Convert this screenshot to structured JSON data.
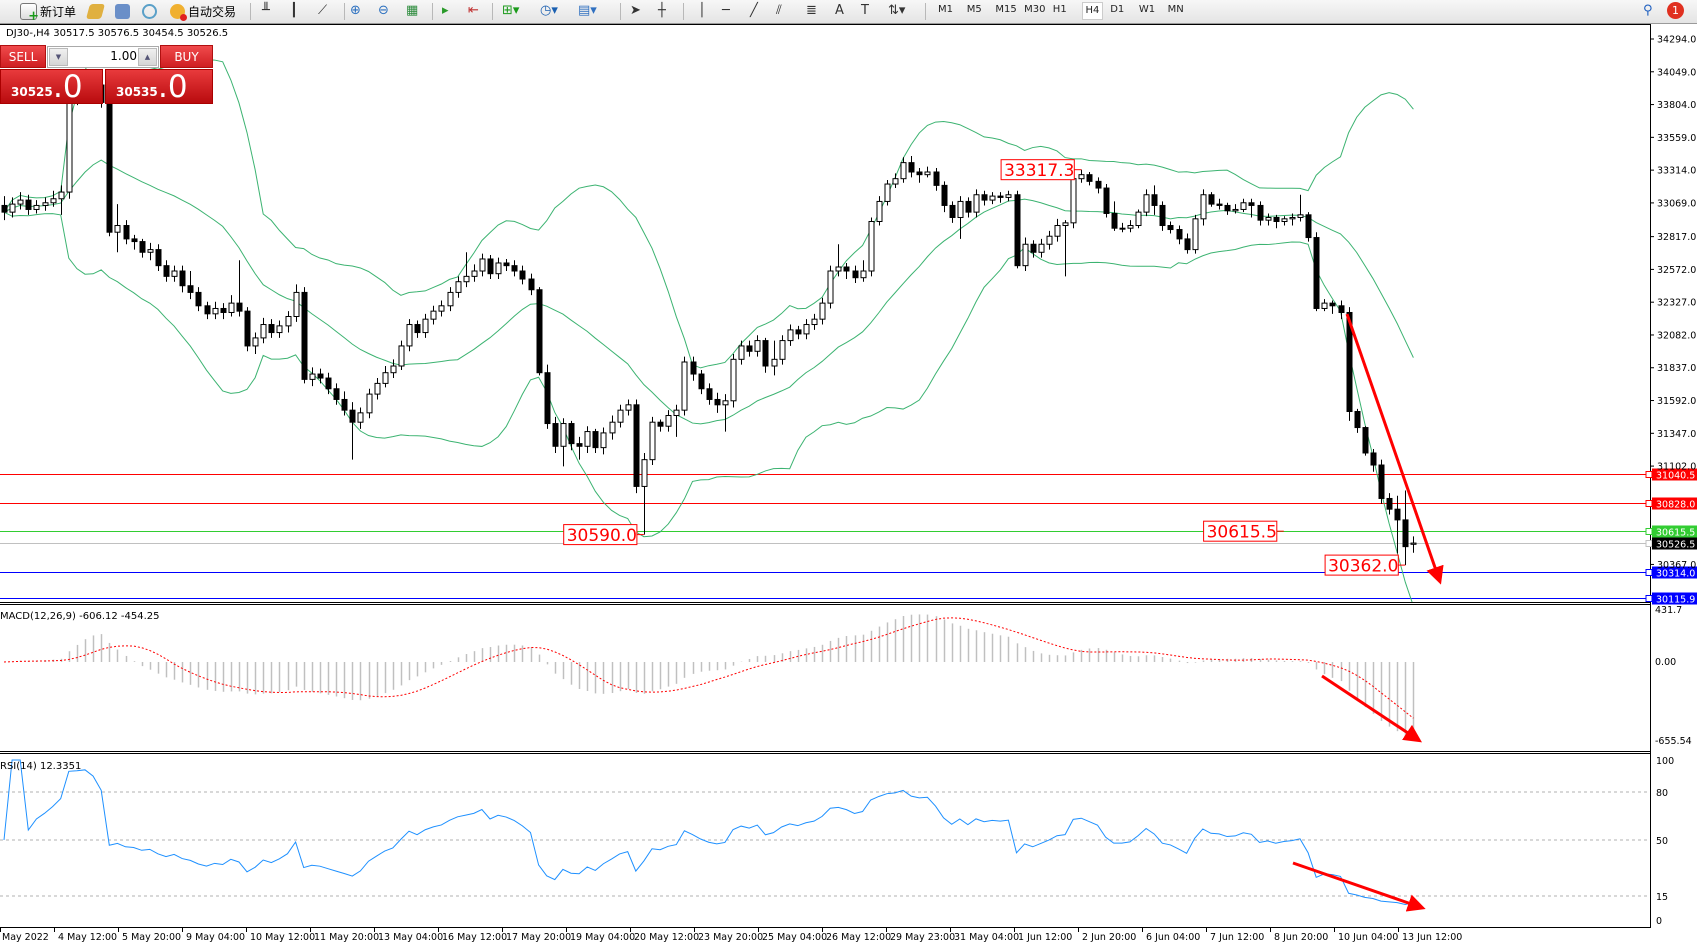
{
  "toolbar": {
    "new_order": "新订单",
    "auto_trade": "自动交易",
    "timeframes": [
      "M1",
      "M5",
      "M15",
      "M30",
      "H1",
      "H4",
      "D1",
      "W1",
      "MN"
    ],
    "active_timeframe": "H4",
    "notification_count": "1",
    "icons": [
      "new-order-icon",
      "history-icon",
      "terminal-icon",
      "signals-icon",
      "autotrade-icon",
      "bar-chart-icon",
      "candlestick-icon",
      "line-chart-icon",
      "zoom-in-icon",
      "zoom-out-icon",
      "tile-windows-icon",
      "autoscroll-icon",
      "chart-shift-icon",
      "new-chart-icon",
      "periods-icon",
      "templates-icon",
      "cursor-icon",
      "crosshair-icon",
      "vertical-line-icon",
      "horizontal-line-icon",
      "trendline-icon",
      "equidistant-channel-icon",
      "fibonacci-icon",
      "text-icon",
      "text-label-icon",
      "arrows-icon",
      "search-icon",
      "chat-icon"
    ]
  },
  "info_line": "DJ30-,H4  30517.5 30576.5 30454.5 30526.5",
  "one_click": {
    "sell_label": "SELL",
    "buy_label": "BUY",
    "lot": "1.00",
    "sell_price_main": "30525",
    "sell_price_frac": ".0",
    "buy_price_main": "30535",
    "buy_price_frac": ".0",
    "color": "#d42a2d"
  },
  "chart_data": {
    "type": "candlestick",
    "symbol": "DJ30-",
    "timeframe": "H4",
    "ylim": [
      30115.9,
      34294.0
    ],
    "price_ticks": [
      "34294.0",
      "34049.0",
      "33804.0",
      "33559.0",
      "33314.0",
      "33069.0",
      "32817.0",
      "32572.0",
      "32327.0",
      "32082.0",
      "31837.0",
      "31592.0",
      "31347.0",
      "31102.0",
      "30367.0"
    ],
    "date_labels": [
      "May 2022",
      "4 May 12:00",
      "5 May 20:00",
      "9 May 04:00",
      "10 May 12:00",
      "11 May 20:00",
      "13 May 04:00",
      "16 May 12:00",
      "17 May 20:00",
      "19 May 04:00",
      "20 May 12:00",
      "23 May 20:00",
      "25 May 04:00",
      "26 May 12:00",
      "29 May 23:00",
      "31 May 04:00",
      "1 Jun 12:00",
      "2 Jun 20:00",
      "6 Jun 04:00",
      "7 Jun 12:00",
      "8 Jun 20:00",
      "10 Jun 04:00",
      "13 Jun 12:00"
    ],
    "ohlc": [
      [
        33050,
        33120,
        32940,
        33000
      ],
      [
        33000,
        33110,
        32960,
        33060
      ],
      [
        33060,
        33150,
        33020,
        33090
      ],
      [
        33090,
        33130,
        32980,
        33020
      ],
      [
        33020,
        33090,
        32990,
        33050
      ],
      [
        33050,
        33110,
        33010,
        33070
      ],
      [
        33070,
        33160,
        33040,
        33100
      ],
      [
        33100,
        33200,
        32980,
        33150
      ],
      [
        33150,
        33900,
        33100,
        33850
      ],
      [
        33850,
        33960,
        33800,
        33900
      ],
      [
        33900,
        34060,
        33860,
        34000
      ],
      [
        34000,
        34050,
        33900,
        33950
      ],
      [
        33950,
        33990,
        33780,
        33820
      ],
      [
        33820,
        33850,
        32820,
        32850
      ],
      [
        32850,
        33060,
        32700,
        32900
      ],
      [
        32900,
        32940,
        32760,
        32800
      ],
      [
        32800,
        32830,
        32720,
        32780
      ],
      [
        32780,
        32800,
        32660,
        32700
      ],
      [
        32700,
        32770,
        32640,
        32720
      ],
      [
        32720,
        32760,
        32560,
        32600
      ],
      [
        32600,
        32640,
        32480,
        32520
      ],
      [
        32520,
        32600,
        32480,
        32560
      ],
      [
        32560,
        32600,
        32400,
        32450
      ],
      [
        32450,
        32560,
        32350,
        32400
      ],
      [
        32400,
        32440,
        32260,
        32300
      ],
      [
        32300,
        32330,
        32200,
        32240
      ],
      [
        32240,
        32330,
        32200,
        32280
      ],
      [
        32280,
        32320,
        32200,
        32250
      ],
      [
        32250,
        32380,
        32220,
        32320
      ],
      [
        32320,
        32640,
        32220,
        32260
      ],
      [
        32260,
        32290,
        31960,
        32000
      ],
      [
        32000,
        32100,
        31940,
        32060
      ],
      [
        32060,
        32210,
        32020,
        32160
      ],
      [
        32160,
        32200,
        32060,
        32100
      ],
      [
        32100,
        32190,
        32060,
        32150
      ],
      [
        32150,
        32260,
        32100,
        32220
      ],
      [
        32220,
        32460,
        32180,
        32400
      ],
      [
        32400,
        32440,
        31720,
        31750
      ],
      [
        31750,
        31840,
        31700,
        31790
      ],
      [
        31790,
        31830,
        31720,
        31760
      ],
      [
        31760,
        31800,
        31640,
        31680
      ],
      [
        31680,
        31720,
        31560,
        31600
      ],
      [
        31600,
        31660,
        31480,
        31520
      ],
      [
        31520,
        31580,
        31150,
        31430
      ],
      [
        31430,
        31540,
        31380,
        31500
      ],
      [
        31500,
        31680,
        31460,
        31640
      ],
      [
        31640,
        31760,
        31600,
        31720
      ],
      [
        31720,
        31850,
        31690,
        31800
      ],
      [
        31800,
        31900,
        31760,
        31850
      ],
      [
        31850,
        32040,
        31820,
        32000
      ],
      [
        32000,
        32200,
        31960,
        32160
      ],
      [
        32160,
        32190,
        32060,
        32100
      ],
      [
        32100,
        32240,
        32060,
        32200
      ],
      [
        32200,
        32300,
        32160,
        32260
      ],
      [
        32260,
        32340,
        32220,
        32300
      ],
      [
        32300,
        32440,
        32260,
        32400
      ],
      [
        32400,
        32520,
        32360,
        32480
      ],
      [
        32480,
        32700,
        32440,
        32520
      ],
      [
        32520,
        32610,
        32480,
        32560
      ],
      [
        32560,
        32690,
        32520,
        32650
      ],
      [
        32650,
        32680,
        32500,
        32540
      ],
      [
        32540,
        32660,
        32500,
        32620
      ],
      [
        32620,
        32650,
        32560,
        32600
      ],
      [
        32600,
        32640,
        32520,
        32560
      ],
      [
        32560,
        32600,
        32460,
        32500
      ],
      [
        32500,
        32540,
        32380,
        32420
      ],
      [
        32420,
        32440,
        31780,
        31800
      ],
      [
        31800,
        31860,
        31380,
        31420
      ],
      [
        31420,
        31470,
        31200,
        31250
      ],
      [
        31250,
        31460,
        31100,
        31420
      ],
      [
        31420,
        31440,
        31220,
        31270
      ],
      [
        31270,
        31320,
        31150,
        31250
      ],
      [
        31250,
        31400,
        31200,
        31360
      ],
      [
        31360,
        31380,
        31200,
        31240
      ],
      [
        31240,
        31390,
        31190,
        31350
      ],
      [
        31350,
        31480,
        31300,
        31430
      ],
      [
        31430,
        31560,
        31390,
        31520
      ],
      [
        31520,
        31600,
        31480,
        31560
      ],
      [
        31560,
        31600,
        30900,
        30950
      ],
      [
        30950,
        31200,
        30590,
        31150
      ],
      [
        31150,
        31470,
        31110,
        31430
      ],
      [
        31430,
        31450,
        31360,
        31400
      ],
      [
        31400,
        31520,
        31360,
        31480
      ],
      [
        31480,
        31560,
        31320,
        31520
      ],
      [
        31520,
        31920,
        31480,
        31880
      ],
      [
        31880,
        31920,
        31740,
        31790
      ],
      [
        31790,
        31820,
        31640,
        31680
      ],
      [
        31680,
        31720,
        31560,
        31600
      ],
      [
        31600,
        31650,
        31500,
        31560
      ],
      [
        31560,
        31640,
        31360,
        31590
      ],
      [
        31590,
        31940,
        31540,
        31900
      ],
      [
        31900,
        32040,
        31860,
        32000
      ],
      [
        32000,
        32040,
        31920,
        31960
      ],
      [
        31960,
        32080,
        31920,
        32040
      ],
      [
        32040,
        32060,
        31800,
        31850
      ],
      [
        31850,
        32040,
        31780,
        31900
      ],
      [
        31900,
        32080,
        31860,
        32040
      ],
      [
        32040,
        32160,
        32000,
        32120
      ],
      [
        32120,
        32150,
        32050,
        32090
      ],
      [
        32090,
        32200,
        32050,
        32160
      ],
      [
        32160,
        32240,
        32120,
        32200
      ],
      [
        32200,
        32360,
        32160,
        32320
      ],
      [
        32320,
        32600,
        32280,
        32560
      ],
      [
        32560,
        32760,
        32520,
        32590
      ],
      [
        32590,
        32620,
        32500,
        32560
      ],
      [
        32560,
        32600,
        32470,
        32510
      ],
      [
        32510,
        32640,
        32480,
        32560
      ],
      [
        32560,
        32960,
        32520,
        32930
      ],
      [
        32930,
        33120,
        32900,
        33080
      ],
      [
        33080,
        33240,
        33050,
        33210
      ],
      [
        33210,
        33290,
        33180,
        33250
      ],
      [
        33250,
        33410,
        33220,
        33370
      ],
      [
        33370,
        33420,
        33260,
        33300
      ],
      [
        33300,
        33330,
        33220,
        33280
      ],
      [
        33280,
        33340,
        33260,
        33300
      ],
      [
        33300,
        33330,
        33160,
        33200
      ],
      [
        33200,
        33230,
        33000,
        33050
      ],
      [
        33050,
        33080,
        32920,
        32960
      ],
      [
        32960,
        33120,
        32800,
        33080
      ],
      [
        33080,
        33110,
        32960,
        33000
      ],
      [
        33000,
        33170,
        32960,
        33130
      ],
      [
        33130,
        33160,
        33050,
        33090
      ],
      [
        33090,
        33150,
        33060,
        33120
      ],
      [
        33120,
        33150,
        33070,
        33110
      ],
      [
        33110,
        33160,
        33080,
        33130
      ],
      [
        33130,
        33160,
        32580,
        32600
      ],
      [
        32600,
        32810,
        32560,
        32760
      ],
      [
        32760,
        32790,
        32660,
        32700
      ],
      [
        32700,
        32800,
        32660,
        32760
      ],
      [
        32760,
        32860,
        32720,
        32820
      ],
      [
        32820,
        32950,
        32780,
        32900
      ],
      [
        32900,
        32940,
        32520,
        32920
      ],
      [
        32920,
        33290,
        32880,
        33250
      ],
      [
        33250,
        33317.3,
        33220,
        33280
      ],
      [
        33280,
        33300,
        33200,
        33230
      ],
      [
        33230,
        33260,
        33140,
        33180
      ],
      [
        33180,
        33210,
        32960,
        32990
      ],
      [
        32990,
        33080,
        32860,
        32880
      ],
      [
        32880,
        32920,
        32850,
        32880
      ],
      [
        32880,
        32940,
        32850,
        32900
      ],
      [
        32900,
        33020,
        32880,
        33000
      ],
      [
        33000,
        33170,
        32970,
        33130
      ],
      [
        33130,
        33200,
        32980,
        33050
      ],
      [
        33050,
        33080,
        32860,
        32900
      ],
      [
        32900,
        32930,
        32840,
        32870
      ],
      [
        32870,
        32900,
        32760,
        32800
      ],
      [
        32800,
        32840,
        32690,
        32720
      ],
      [
        32720,
        32980,
        32690,
        32950
      ],
      [
        32950,
        33170,
        32900,
        33130
      ],
      [
        33130,
        33150,
        33040,
        33060
      ],
      [
        33060,
        33100,
        33020,
        33050
      ],
      [
        33050,
        33070,
        32980,
        33010
      ],
      [
        33010,
        33060,
        32990,
        33020
      ],
      [
        33020,
        33100,
        33000,
        33070
      ],
      [
        33070,
        33100,
        32960,
        33050
      ],
      [
        33050,
        33080,
        32900,
        32940
      ],
      [
        32940,
        32990,
        32900,
        32960
      ],
      [
        32960,
        32980,
        32880,
        32930
      ],
      [
        32930,
        32970,
        32900,
        32950
      ],
      [
        32950,
        32990,
        32900,
        32960
      ],
      [
        32960,
        33130,
        32930,
        32980
      ],
      [
        32980,
        33000,
        32780,
        32810
      ],
      [
        32810,
        32850,
        32260,
        32280
      ],
      [
        32280,
        32350,
        32260,
        32320
      ],
      [
        32320,
        32340,
        32240,
        32300
      ],
      [
        32300,
        32340,
        32200,
        32250
      ],
      [
        32250,
        32290,
        31440,
        31510
      ],
      [
        31510,
        31530,
        31350,
        31390
      ],
      [
        31390,
        31400,
        31180,
        31200
      ],
      [
        31200,
        31230,
        31060,
        31110
      ],
      [
        31110,
        31150,
        30820,
        30860
      ],
      [
        30860,
        30900,
        30740,
        30780
      ],
      [
        30780,
        30880,
        30450,
        30700
      ],
      [
        30700,
        30920,
        30362,
        30500
      ],
      [
        30517.5,
        30576.5,
        30454.5,
        30526.5
      ]
    ],
    "bollinger": {
      "period": 20,
      "deviation": 2,
      "color": "#3cb371"
    },
    "levels": [
      {
        "price": "31040.5",
        "color": "#ff0000"
      },
      {
        "price": "30828.0",
        "color": "#ff0000"
      },
      {
        "price": "30615.5",
        "color": "#32cd32"
      },
      {
        "price": "30526.5",
        "color": "#000000",
        "line": "#c0c0c0"
      },
      {
        "price": "30314.0",
        "color": "#0000ff"
      },
      {
        "price": "30115.9",
        "color": "#0000ff"
      }
    ],
    "annotations": [
      {
        "text": "33317.3",
        "bar": 133,
        "price": 33317.3
      },
      {
        "text": "30590.0",
        "bar": 79,
        "price": 30590.0
      },
      {
        "text": "30615.5",
        "bar": 158,
        "price": 30615.5
      },
      {
        "text": "30362.0",
        "bar": 173,
        "price": 30362.0
      }
    ],
    "macd": {
      "label": "MACD(12,26,9) -606.12 -454.25",
      "ticks": [
        "431.7",
        "0.00",
        "-655.54"
      ],
      "ylim": [
        -655.54,
        431.7
      ],
      "histogram_color": "#c0c0c0",
      "signal_color": "#ff0000"
    },
    "rsi": {
      "label": "RSI(14) 12.3351",
      "ticks": [
        "100",
        "80",
        "50",
        "15",
        "0"
      ],
      "levels": [
        80,
        50,
        15
      ],
      "color": "#1e90ff"
    },
    "trend_arrows_color": "#ff0000"
  }
}
